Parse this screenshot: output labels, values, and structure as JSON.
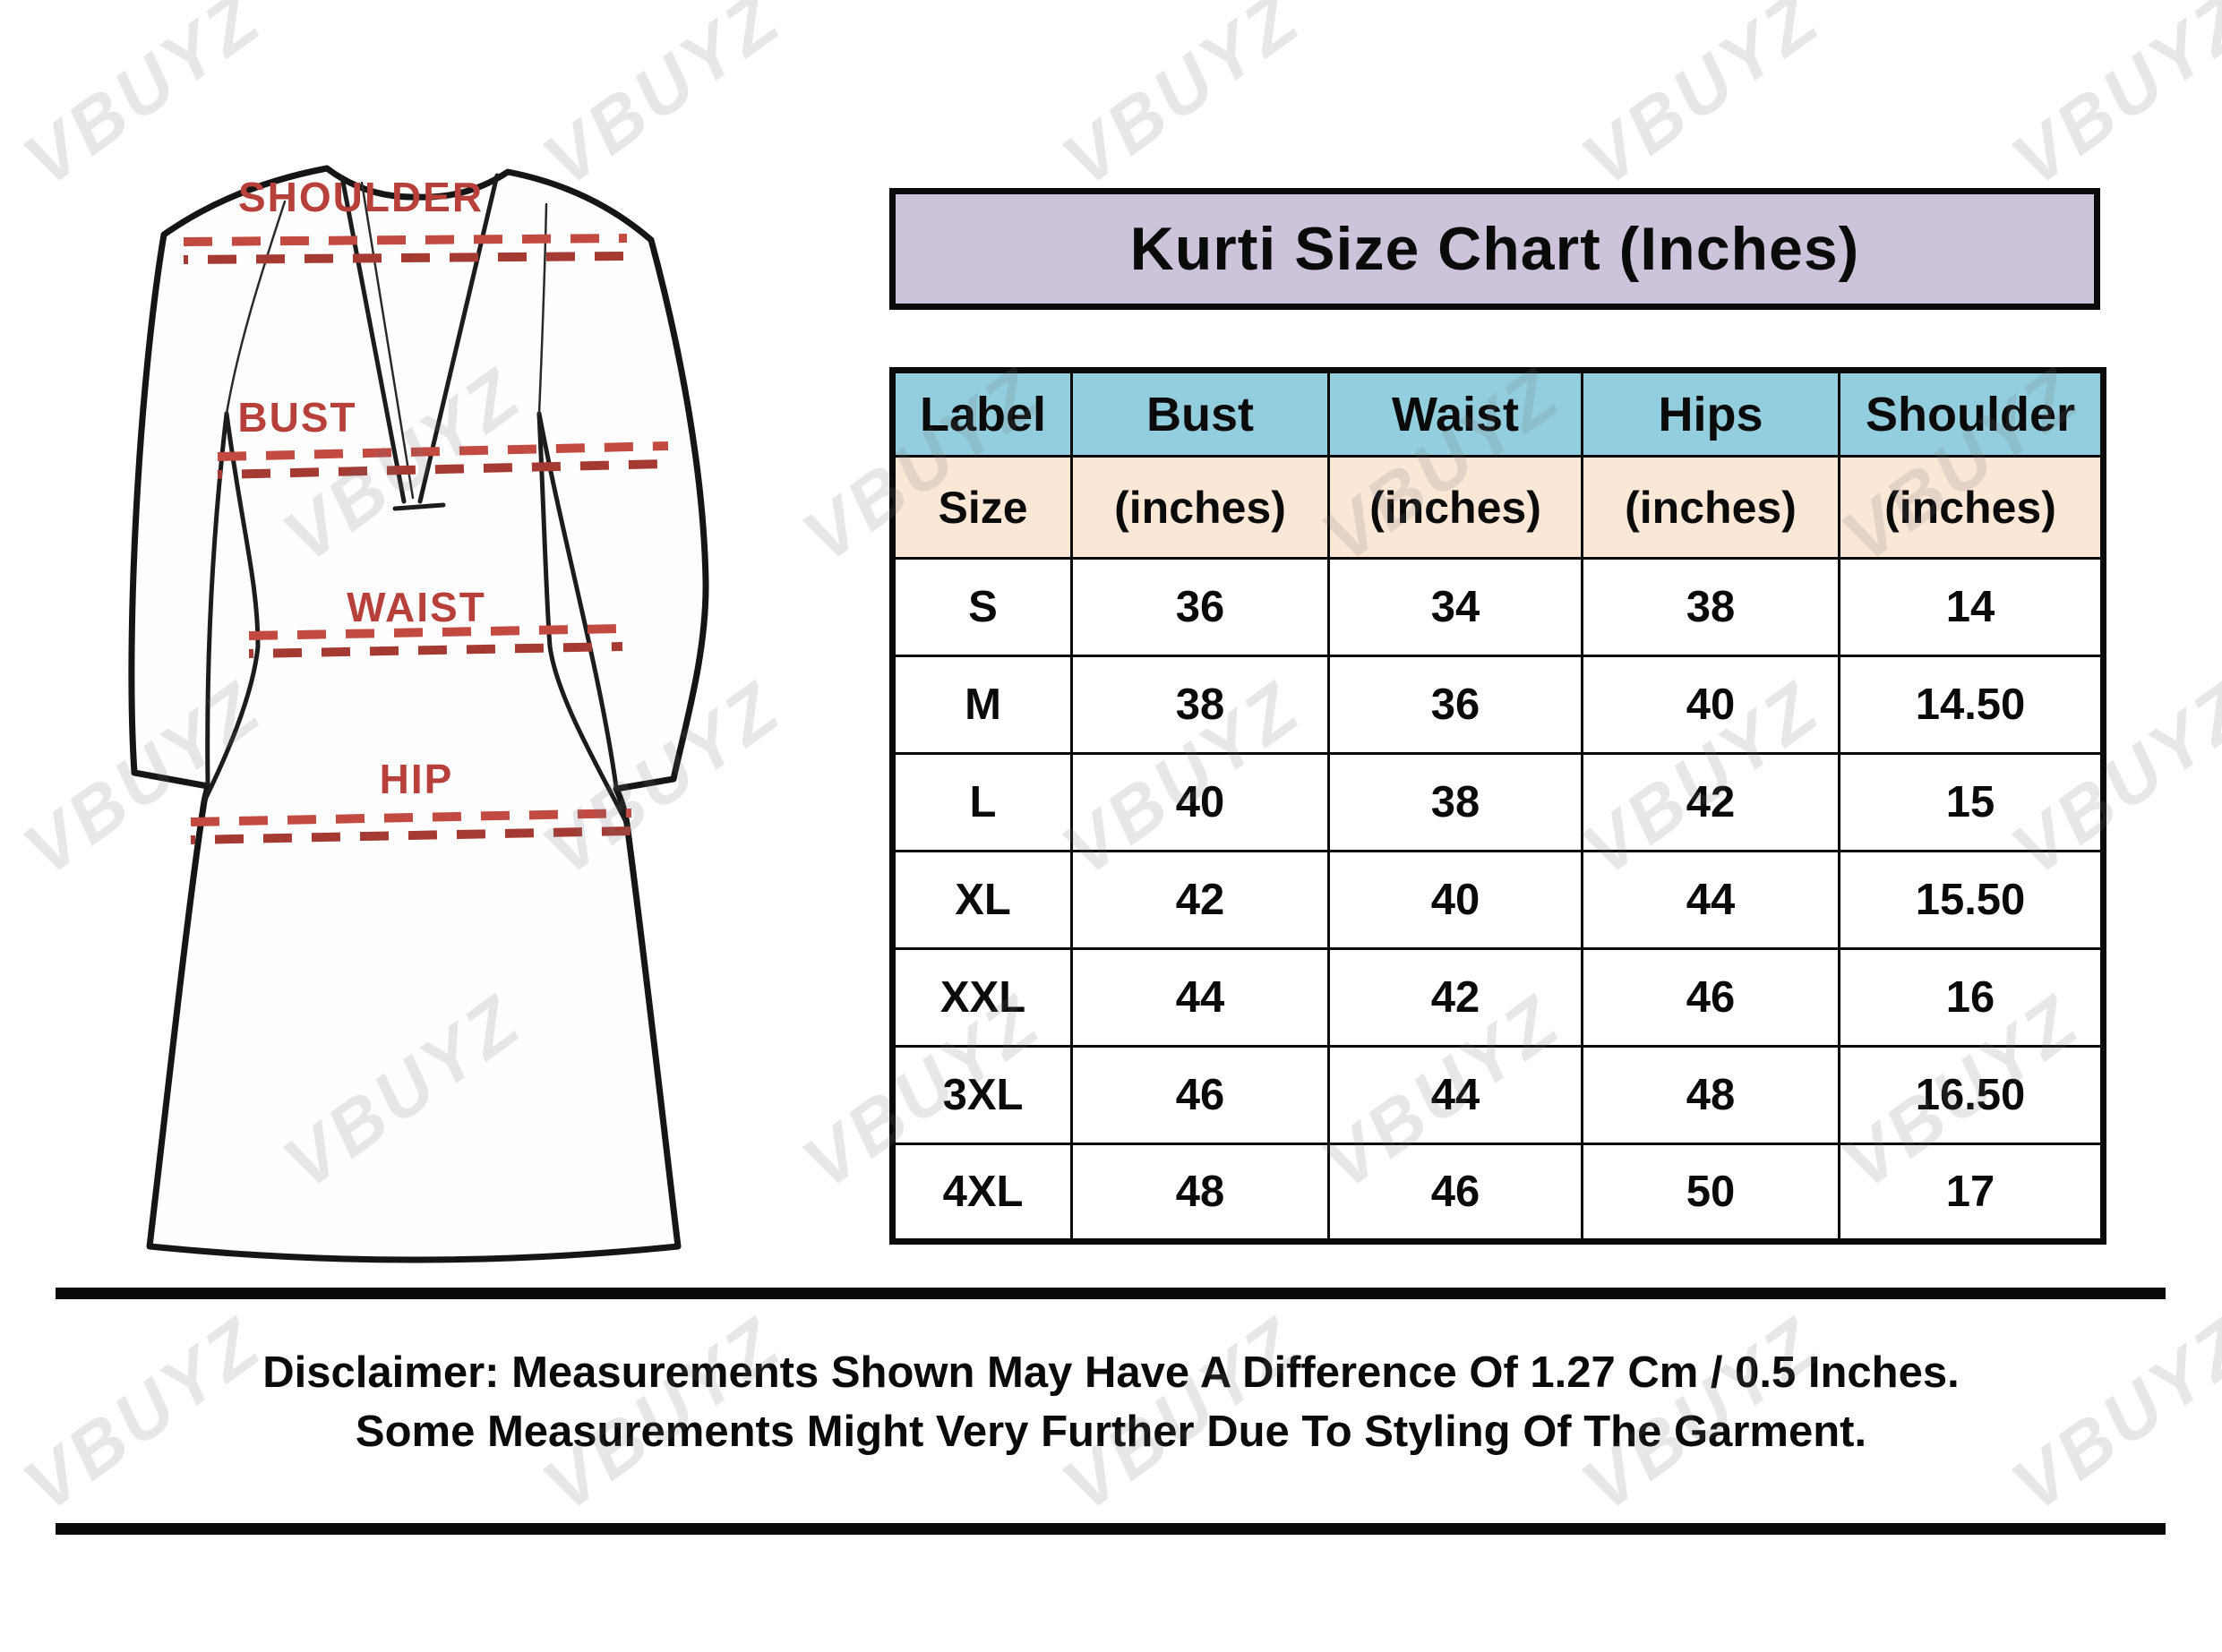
{
  "watermark_text": "VBUYZ",
  "title": "Kurti Size Chart (Inches)",
  "garment": {
    "labels": {
      "shoulder": "SHOULDER",
      "bust": "BUST",
      "waist": "WAIST",
      "hip": "HIP"
    }
  },
  "chart_data": {
    "type": "table",
    "title": "Kurti Size Chart (Inches)",
    "columns": [
      "Label",
      "Bust",
      "Waist",
      "Hips",
      "Shoulder"
    ],
    "subheaders": [
      "Size",
      "(inches)",
      "(inches)",
      "(inches)",
      "(inches)"
    ],
    "rows": [
      [
        "S",
        "36",
        "34",
        "38",
        "14"
      ],
      [
        "M",
        "38",
        "36",
        "40",
        "14.50"
      ],
      [
        "L",
        "40",
        "38",
        "42",
        "15"
      ],
      [
        "XL",
        "42",
        "40",
        "44",
        "15.50"
      ],
      [
        "XXL",
        "44",
        "42",
        "46",
        "16"
      ],
      [
        "3XL",
        "46",
        "44",
        "48",
        "16.50"
      ],
      [
        "4XL",
        "48",
        "46",
        "50",
        "17"
      ]
    ]
  },
  "disclaimer": {
    "line1": "Disclaimer: Measurements Shown May Have A Difference Of 1.27 Cm / 0.5 Inches.",
    "line2": "Some Measurements Might Very Further Due To Styling Of The Garment."
  },
  "colors": {
    "banner_bg": "#cdc3da",
    "header_bg": "#92cedd",
    "subheader_bg": "#fbe7d5",
    "measure_red": "#b8403a",
    "border": "#0a0a0a"
  }
}
